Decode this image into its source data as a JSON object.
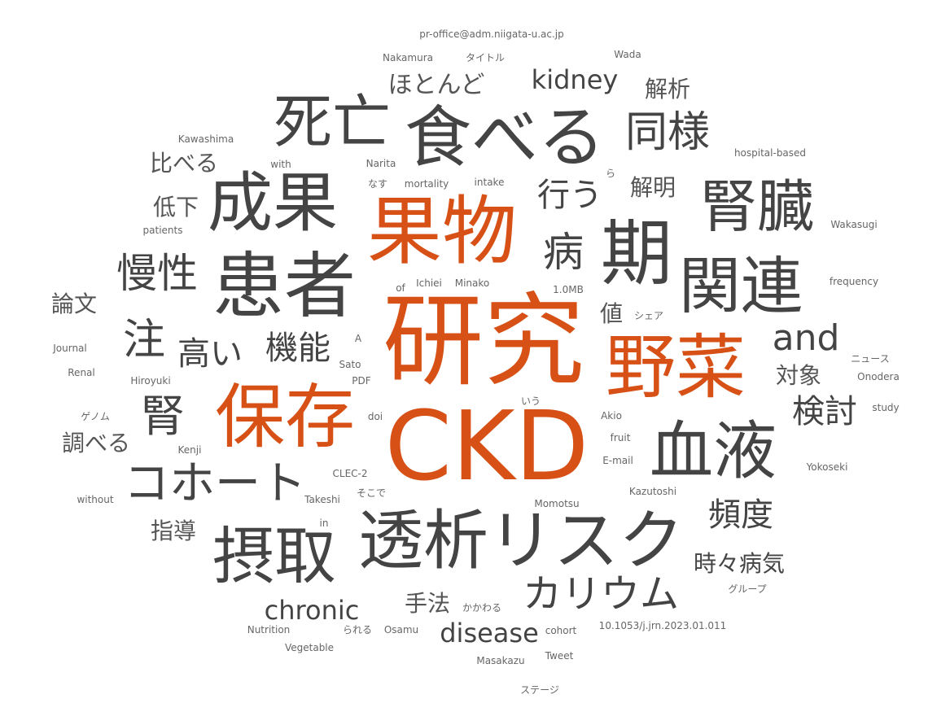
{
  "accent_color": "#d75016",
  "text_color": "#444444",
  "words": {
    "kenkyu": "研究",
    "ckd": "CKD",
    "kabutsu": "果物",
    "yasai": "野菜",
    "hozon": "保存",
    "kanja": "患者",
    "taberu": "食べる",
    "toseki": "透析リスク",
    "seika": "成果",
    "ki": "期",
    "kanren": "関連",
    "shibo": "死亡",
    "jinzo": "腎臓",
    "sesshu": "摂取",
    "ketsueki": "血液",
    "cohort": "コホート",
    "doyo": "同様",
    "byo": "病",
    "mansei": "慢性",
    "kalium": "カリウム",
    "jin": "腎",
    "chu": "注",
    "kinou": "機能",
    "takai": "高い",
    "kento": "検討",
    "okonau": "行う",
    "and": "and",
    "hindo": "頻度",
    "kidney": "kidney",
    "chronic": "chronic",
    "disease": "disease",
    "jijibyoki": "時々病気",
    "hotondo": "ほとんど",
    "kaiseki": "解析",
    "kaimei": "解明",
    "kuraberu": "比べる",
    "teika": "低下",
    "ronbun": "論文",
    "shiraberu": "調べる",
    "shido": "指導",
    "shuho": "手法",
    "taisho": "対象",
    "atai": "値",
    "email_addr": "pr-office@adm.niigata-u.ac.jp",
    "nakamura": "Nakamura",
    "title_jp": "タイトル",
    "wada": "Wada",
    "kawashima": "Kawashima",
    "hospital": "hospital-based",
    "with": "with",
    "narita": "Narita",
    "ra": "ら",
    "nasu": "なす",
    "mortality": "mortality",
    "intake": "intake",
    "patients": "patients",
    "wakasugi": "Wakasugi",
    "of": "of",
    "ichiei": "Ichiei",
    "minako": "Minako",
    "size": "1.0MB",
    "frequency": "frequency",
    "share": "シェア",
    "a": "A",
    "journal": "Journal",
    "sato": "Sato",
    "news": "ニュース",
    "renal": "Renal",
    "hiroyuki": "Hiroyuki",
    "pdf": "PDF",
    "onodera": "Onodera",
    "iu": "いう",
    "study": "study",
    "genome": "ゲノム",
    "doi": "doi",
    "akio": "Akio",
    "fruit": "fruit",
    "kenji": "Kenji",
    "email": "E-mail",
    "yokoseki": "Yokoseki",
    "clec": "CLEC-2",
    "without": "without",
    "takeshi": "Takeshi",
    "sokode": "そこで",
    "kazutoshi": "Kazutoshi",
    "momotsu": "Momotsu",
    "in": "in",
    "group": "グループ",
    "kakawaru": "かかわる",
    "nutrition": "Nutrition",
    "rareru": "られる",
    "osamu": "Osamu",
    "cohort_en": "cohort",
    "doi_num": "10.1053/j.jrn.2023.01.011",
    "vegetable": "Vegetable",
    "masakazu": "Masakazu",
    "tweet": "Tweet",
    "stage": "ステージ"
  }
}
